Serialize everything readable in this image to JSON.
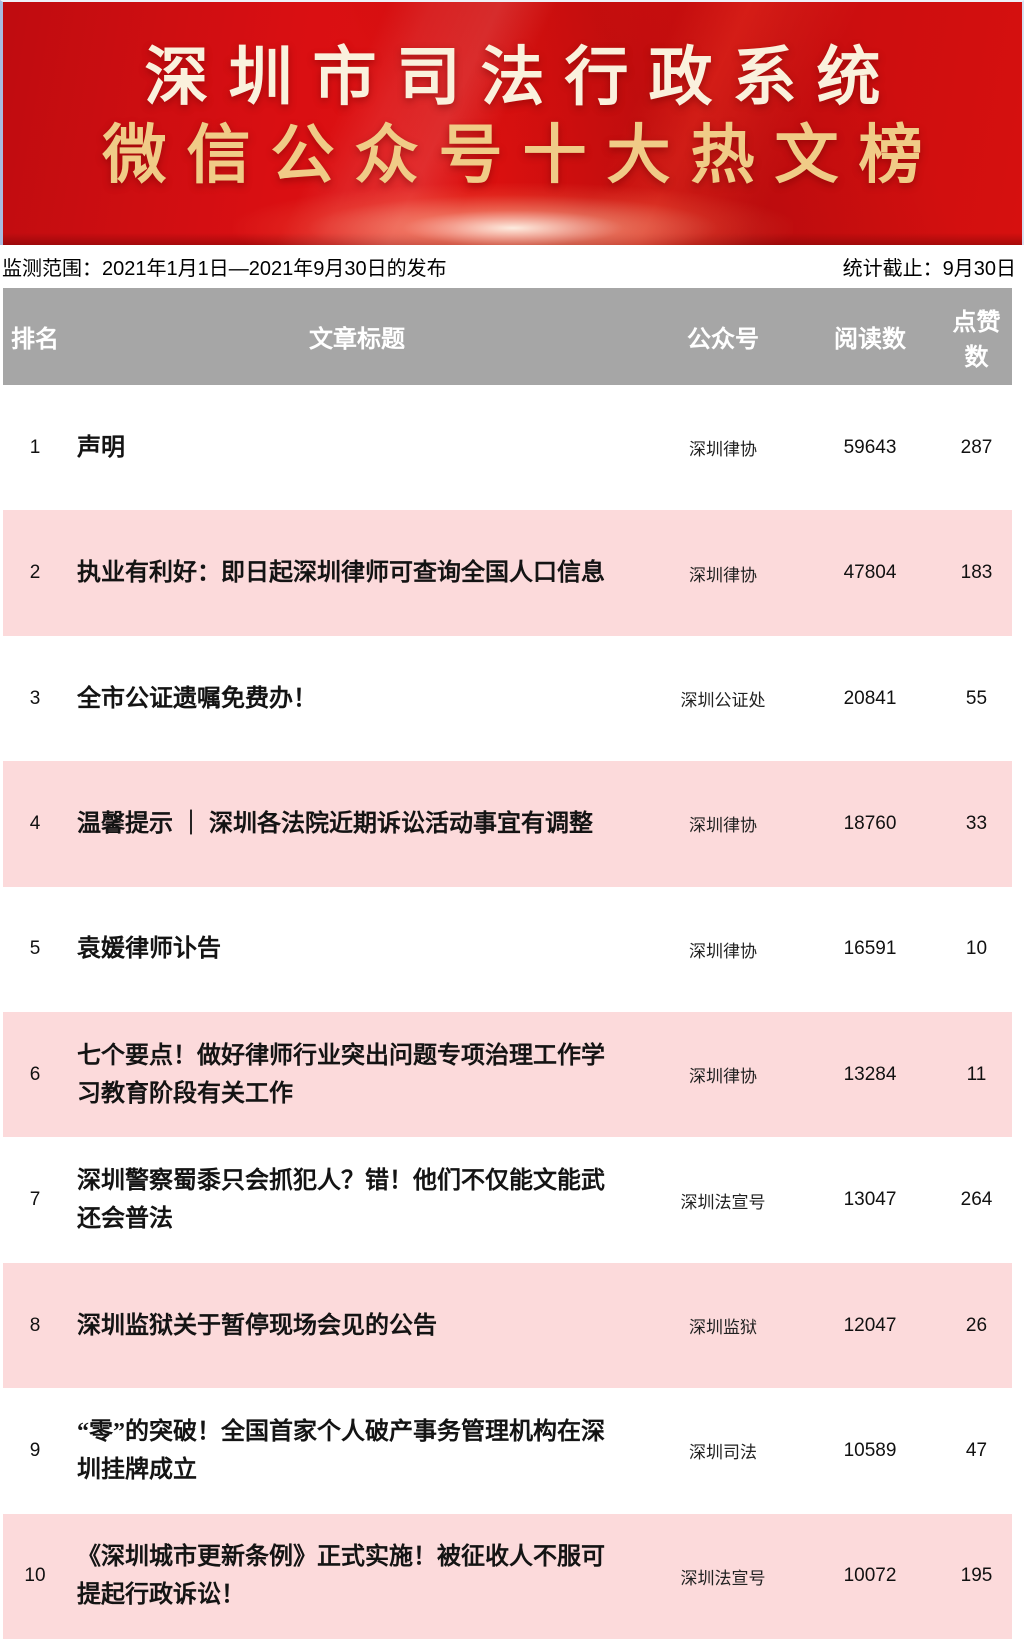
{
  "banner": {
    "title_line1": "深圳市司法行政系统",
    "title_line2": "微信公众号十大热文榜"
  },
  "meta": {
    "range_label": "监测范围：2021年1月1日—2021年9月30日的发布",
    "cutoff_label": "统计截止：9月30日"
  },
  "table": {
    "headers": {
      "rank": "排名",
      "title": "文章标题",
      "account": "公众号",
      "reads": "阅读数",
      "likes": "点赞数"
    },
    "rows": [
      {
        "rank": "1",
        "title": "声明",
        "account": "深圳律协",
        "reads": "59643",
        "likes": "287"
      },
      {
        "rank": "2",
        "title": "执业有利好：即日起深圳律师可查询全国人口信息",
        "account": "深圳律协",
        "reads": "47804",
        "likes": "183"
      },
      {
        "rank": "3",
        "title": "全市公证遗嘱免费办！",
        "account": "深圳公证处",
        "reads": "20841",
        "likes": "55"
      },
      {
        "rank": "4",
        "title": "温馨提示 ｜ 深圳各法院近期诉讼活动事宜有调整",
        "account": "深圳律协",
        "reads": "18760",
        "likes": "33"
      },
      {
        "rank": "5",
        "title": "袁媛律师讣告",
        "account": "深圳律协",
        "reads": "16591",
        "likes": "10"
      },
      {
        "rank": "6",
        "title": "七个要点！做好律师行业突出问题专项治理工作学习教育阶段有关工作",
        "account": "深圳律协",
        "reads": "13284",
        "likes": "11"
      },
      {
        "rank": "7",
        "title": "深圳警察蜀黍只会抓犯人？错！他们不仅能文能武还会普法",
        "account": "深圳法宣号",
        "reads": "13047",
        "likes": "264"
      },
      {
        "rank": "8",
        "title": "深圳监狱关于暂停现场会见的公告",
        "account": "深圳监狱",
        "reads": "12047",
        "likes": "26"
      },
      {
        "rank": "9",
        "title": "“零”的突破！全国首家个人破产事务管理机构在深圳挂牌成立",
        "account": "深圳司法",
        "reads": "10589",
        "likes": "47"
      },
      {
        "rank": "10",
        "title": "《深圳城市更新条例》正式实施！被征收人不服可提起行政诉讼！",
        "account": "深圳法宣号",
        "reads": "10072",
        "likes": "195"
      }
    ]
  },
  "colors": {
    "banner_red": "#d90f12",
    "banner_title_cream": "#faf1dd",
    "banner_title_gold": "#f0cb87",
    "header_gray": "#a6a6a6",
    "row_pink": "#fcdadb",
    "row_white": "#ffffff",
    "text_black": "#141414"
  },
  "chart_data": {
    "type": "table",
    "title": "深圳市司法行政系统微信公众号十大热文榜",
    "subtitle_left": "监测范围：2021年1月1日—2021年9月30日的发布",
    "subtitle_right": "统计截止：9月30日",
    "columns": [
      "排名",
      "文章标题",
      "公众号",
      "阅读数",
      "点赞数"
    ],
    "rows": [
      [
        1,
        "声明",
        "深圳律协",
        59643,
        287
      ],
      [
        2,
        "执业有利好：即日起深圳律师可查询全国人口信息",
        "深圳律协",
        47804,
        183
      ],
      [
        3,
        "全市公证遗嘱免费办！",
        "深圳公证处",
        20841,
        55
      ],
      [
        4,
        "温馨提示 ｜ 深圳各法院近期诉讼活动事宜有调整",
        "深圳律协",
        18760,
        33
      ],
      [
        5,
        "袁媛律师讣告",
        "深圳律协",
        16591,
        10
      ],
      [
        6,
        "七个要点！做好律师行业突出问题专项治理工作学习教育阶段有关工作",
        "深圳律协",
        13284,
        11
      ],
      [
        7,
        "深圳警察蜀黍只会抓犯人？错！他们不仅能文能武还会普法",
        "深圳法宣号",
        13047,
        264
      ],
      [
        8,
        "深圳监狱关于暂停现场会见的公告",
        "深圳监狱",
        12047,
        26
      ],
      [
        9,
        "“零”的突破！全国首家个人破产事务管理机构在深圳挂牌成立",
        "深圳司法",
        10589,
        47
      ],
      [
        10,
        "《深圳城市更新条例》正式实施！被征收人不服可提起行政诉讼！",
        "深圳法宣号",
        10072,
        195
      ]
    ]
  }
}
